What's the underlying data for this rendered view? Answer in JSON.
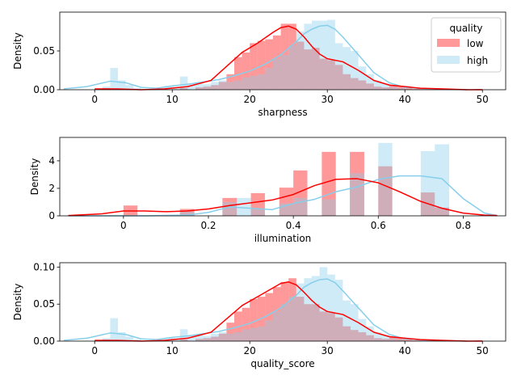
{
  "legend": {
    "title": "quality",
    "entries": [
      {
        "label": "low",
        "color": "#ff0000"
      },
      {
        "label": "high",
        "color": "#87ceeb"
      }
    ]
  },
  "chart_data": [
    {
      "type": "histogram+kde",
      "xlabel": "sharpness",
      "ylabel": "Density",
      "xlim": [
        -4.5,
        53
      ],
      "ylim": [
        0,
        0.1
      ],
      "xticks": [
        0,
        10,
        20,
        30,
        40,
        50
      ],
      "yticks": [
        0.0,
        0.05
      ],
      "ytick_labels": [
        "0.00",
        "0.05"
      ],
      "low_bins": {
        "edges": [
          1,
          2,
          3,
          4,
          5,
          6,
          7,
          8,
          9,
          10,
          11,
          12,
          13,
          14,
          15,
          16,
          17,
          18,
          19,
          20,
          21,
          22,
          23,
          24,
          25,
          26,
          27,
          28,
          29,
          30,
          31,
          32,
          33,
          34,
          35,
          36,
          37,
          38,
          39,
          40,
          41,
          42,
          43,
          44,
          45,
          46,
          47,
          48,
          49,
          50
        ],
        "heights": [
          0.002,
          0.001,
          0.001,
          0,
          0,
          0,
          0,
          0,
          0,
          0,
          0.002,
          0,
          0.003,
          0.004,
          0.006,
          0.01,
          0.02,
          0.042,
          0.048,
          0.06,
          0.063,
          0.065,
          0.07,
          0.085,
          0.085,
          0.062,
          0.052,
          0.054,
          0.04,
          0.038,
          0.032,
          0.02,
          0.015,
          0.012,
          0.008,
          0.004,
          0.003,
          0.006,
          0.004,
          0.002,
          0.001,
          0.001,
          0,
          0,
          0,
          0,
          0,
          0,
          0.001
        ]
      },
      "high_bins": {
        "edges": [
          1,
          2,
          3,
          4,
          5,
          6,
          7,
          8,
          9,
          10,
          11,
          12,
          13,
          14,
          15,
          16,
          17,
          18,
          19,
          20,
          21,
          22,
          23,
          24,
          25,
          26,
          27,
          28,
          29,
          30,
          31,
          32,
          33,
          34,
          35,
          36,
          37,
          38,
          39,
          40
        ],
        "heights": [
          0.004,
          0.028,
          0.012,
          0.006,
          0.002,
          0,
          0,
          0.003,
          0.005,
          0.004,
          0.017,
          0.008,
          0.008,
          0.007,
          0.01,
          0.012,
          0.01,
          0.012,
          0.016,
          0.018,
          0.02,
          0.028,
          0.04,
          0.045,
          0.057,
          0.075,
          0.085,
          0.089,
          0.089,
          0.09,
          0.06,
          0.055,
          0.05,
          0.03,
          0.02,
          0.012,
          0.008,
          0.004,
          0.002
        ]
      },
      "low_kde": {
        "x": [
          0,
          3,
          6,
          9,
          12,
          15,
          17,
          19,
          21,
          23,
          24,
          25,
          26,
          27,
          28,
          29,
          30,
          32,
          34,
          36,
          38,
          40,
          42,
          45,
          48,
          50
        ],
        "y": [
          0.001,
          0.001,
          0,
          0.001,
          0.004,
          0.012,
          0.03,
          0.048,
          0.06,
          0.074,
          0.08,
          0.082,
          0.078,
          0.068,
          0.056,
          0.046,
          0.04,
          0.036,
          0.025,
          0.012,
          0.006,
          0.004,
          0.002,
          0.001,
          0,
          0
        ]
      },
      "high_kde": {
        "x": [
          -4,
          -1,
          2,
          4,
          6,
          8,
          10,
          12,
          14,
          16,
          18,
          20,
          22,
          24,
          26,
          27,
          28,
          29,
          30,
          31,
          32,
          34,
          36,
          38,
          40,
          43,
          48
        ],
        "y": [
          0.001,
          0.004,
          0.011,
          0.009,
          0.003,
          0.002,
          0.005,
          0.007,
          0.01,
          0.013,
          0.018,
          0.024,
          0.033,
          0.045,
          0.062,
          0.072,
          0.078,
          0.082,
          0.083,
          0.078,
          0.068,
          0.045,
          0.022,
          0.009,
          0.003,
          0.001,
          0
        ]
      }
    },
    {
      "type": "histogram+kde",
      "xlabel": "illumination",
      "ylabel": "Density",
      "xlim": [
        -0.15,
        0.9
      ],
      "ylim": [
        0,
        5.7
      ],
      "xticks": [
        0.0,
        0.2,
        0.4,
        0.6,
        0.8
      ],
      "yticks": [
        0,
        2,
        4
      ],
      "low_bins": {
        "edges": [
          0.0,
          0.033,
          0.067,
          0.1,
          0.133,
          0.167,
          0.2,
          0.233,
          0.267,
          0.3,
          0.333,
          0.367,
          0.4,
          0.433,
          0.467,
          0.5,
          0.533,
          0.567,
          0.6,
          0.633,
          0.667,
          0.7,
          0.733,
          0.767
        ],
        "heights": [
          0.75,
          0,
          0,
          0,
          0.5,
          0,
          0,
          1.3,
          0,
          1.65,
          0,
          2.05,
          3.3,
          0,
          4.65,
          0,
          4.65,
          0,
          3.6,
          0,
          0,
          1.7,
          0.6
        ]
      },
      "high_bins": {
        "edges": [
          0.0,
          0.033,
          0.067,
          0.1,
          0.133,
          0.167,
          0.2,
          0.233,
          0.267,
          0.3,
          0.333,
          0.367,
          0.4,
          0.433,
          0.467,
          0.5,
          0.533,
          0.567,
          0.6,
          0.633,
          0.667,
          0.7,
          0.733,
          0.767
        ],
        "heights": [
          0,
          0,
          0,
          0,
          0.3,
          0,
          0,
          1.0,
          1.3,
          0.5,
          0,
          0.9,
          1.3,
          0,
          1.2,
          0,
          3.1,
          0,
          5.3,
          0,
          0,
          4.7,
          5.2
        ]
      },
      "low_kde": {
        "x": [
          -0.13,
          -0.05,
          0.0,
          0.05,
          0.1,
          0.15,
          0.2,
          0.25,
          0.3,
          0.35,
          0.4,
          0.45,
          0.5,
          0.55,
          0.6,
          0.65,
          0.7,
          0.75,
          0.8,
          0.85,
          0.88
        ],
        "y": [
          0.02,
          0.15,
          0.35,
          0.35,
          0.3,
          0.35,
          0.5,
          0.75,
          0.95,
          1.15,
          1.55,
          2.2,
          2.65,
          2.7,
          2.4,
          1.75,
          1.05,
          0.55,
          0.2,
          0.05,
          0.02
        ]
      },
      "high_kde": {
        "x": [
          -0.13,
          -0.05,
          0.05,
          0.15,
          0.2,
          0.25,
          0.3,
          0.35,
          0.4,
          0.45,
          0.5,
          0.55,
          0.6,
          0.65,
          0.7,
          0.75,
          0.8,
          0.85,
          0.88
        ],
        "y": [
          0,
          0,
          0,
          0.05,
          0.25,
          0.65,
          0.55,
          0.45,
          0.9,
          1.2,
          1.75,
          2.1,
          2.65,
          2.9,
          2.9,
          2.7,
          1.25,
          0.2,
          0.02
        ]
      }
    },
    {
      "type": "histogram+kde",
      "xlabel": "quality_score",
      "ylabel": "Density",
      "xlim": [
        -4.5,
        53
      ],
      "ylim": [
        0,
        0.106
      ],
      "xticks": [
        0,
        10,
        20,
        30,
        40,
        50
      ],
      "yticks": [
        0.0,
        0.05,
        0.1
      ],
      "ytick_labels": [
        "0.00",
        "0.05",
        "0.10"
      ],
      "low_bins": {
        "edges": [
          1,
          2,
          3,
          4,
          5,
          6,
          7,
          8,
          9,
          10,
          11,
          12,
          13,
          14,
          15,
          16,
          17,
          18,
          19,
          20,
          21,
          22,
          23,
          24,
          25,
          26,
          27,
          28,
          29,
          30,
          31,
          32,
          33,
          34,
          35,
          36,
          37,
          38,
          39,
          40,
          41,
          42,
          43,
          44,
          45,
          46,
          47,
          48,
          49,
          50
        ],
        "heights": [
          0.002,
          0.001,
          0.001,
          0,
          0,
          0,
          0,
          0,
          0,
          0,
          0.002,
          0,
          0.003,
          0.004,
          0.006,
          0.01,
          0.025,
          0.04,
          0.045,
          0.057,
          0.06,
          0.065,
          0.073,
          0.08,
          0.085,
          0.06,
          0.05,
          0.05,
          0.04,
          0.038,
          0.032,
          0.02,
          0.015,
          0.012,
          0.008,
          0.004,
          0.003,
          0.006,
          0.004,
          0.002,
          0.001,
          0.001,
          0,
          0,
          0,
          0,
          0,
          0,
          0.001
        ]
      },
      "high_bins": {
        "edges": [
          1,
          2,
          3,
          4,
          5,
          6,
          7,
          8,
          9,
          10,
          11,
          12,
          13,
          14,
          15,
          16,
          17,
          18,
          19,
          20,
          21,
          22,
          23,
          24,
          25,
          26,
          27,
          28,
          29,
          30,
          31,
          32,
          33,
          34,
          35,
          36,
          37,
          38,
          39,
          40
        ],
        "heights": [
          0.004,
          0.031,
          0.012,
          0.006,
          0.002,
          0,
          0,
          0.003,
          0.005,
          0.004,
          0.016,
          0.008,
          0.008,
          0.007,
          0.01,
          0.012,
          0.01,
          0.012,
          0.016,
          0.018,
          0.02,
          0.028,
          0.04,
          0.05,
          0.06,
          0.078,
          0.085,
          0.088,
          0.1,
          0.09,
          0.083,
          0.055,
          0.05,
          0.03,
          0.02,
          0.012,
          0.008,
          0.004,
          0.002
        ]
      },
      "low_kde": {
        "x": [
          0,
          3,
          6,
          9,
          12,
          15,
          17,
          19,
          21,
          23,
          24,
          25,
          26,
          27,
          28,
          29,
          30,
          32,
          34,
          36,
          38,
          40,
          42,
          45,
          48,
          50
        ],
        "y": [
          0.001,
          0.001,
          0,
          0.001,
          0.004,
          0.012,
          0.03,
          0.048,
          0.06,
          0.072,
          0.078,
          0.08,
          0.076,
          0.066,
          0.055,
          0.046,
          0.04,
          0.036,
          0.025,
          0.012,
          0.006,
          0.004,
          0.002,
          0.001,
          0,
          0
        ]
      },
      "high_kde": {
        "x": [
          -4,
          -1,
          2,
          4,
          6,
          8,
          10,
          12,
          14,
          16,
          18,
          20,
          22,
          24,
          26,
          27,
          28,
          29,
          30,
          31,
          32,
          34,
          36,
          38,
          40,
          43,
          48
        ],
        "y": [
          0.001,
          0.004,
          0.011,
          0.009,
          0.003,
          0.002,
          0.005,
          0.007,
          0.01,
          0.013,
          0.018,
          0.024,
          0.033,
          0.045,
          0.062,
          0.073,
          0.079,
          0.083,
          0.084,
          0.079,
          0.068,
          0.045,
          0.022,
          0.009,
          0.003,
          0.001,
          0
        ]
      }
    }
  ]
}
